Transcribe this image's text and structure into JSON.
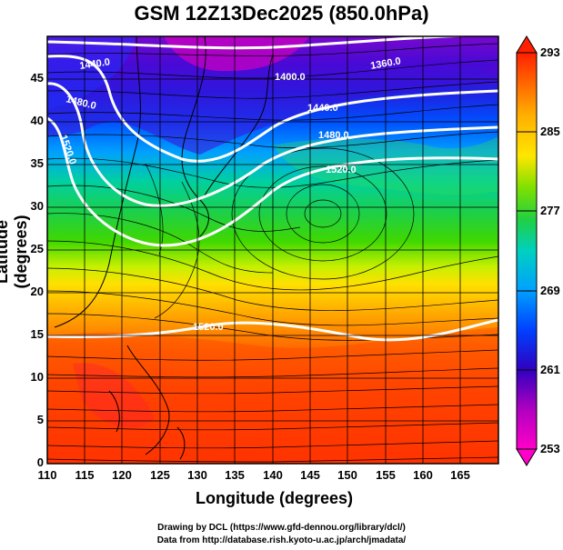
{
  "title": "GSM 12Z13Dec2025 (850.0hPa)",
  "x_axis": {
    "label": "Longitude (degrees)",
    "min": 110,
    "max": 170,
    "ticks": [
      "110",
      "115",
      "120",
      "125",
      "130",
      "135",
      "140",
      "145",
      "150",
      "155",
      "160",
      "165"
    ]
  },
  "y_axis": {
    "label": "Latitude  (degrees)",
    "min": 0,
    "max": 50,
    "ticks": [
      "0",
      "5",
      "10",
      "15",
      "20",
      "25",
      "30",
      "35",
      "40",
      "45"
    ]
  },
  "colorbar": {
    "labels": [
      "293",
      "285",
      "277",
      "269",
      "261",
      "253"
    ],
    "min": 253,
    "max": 293,
    "colors": [
      "#ff0000",
      "#ff6a00",
      "#ffb000",
      "#ffe600",
      "#a6e600",
      "#33cc00",
      "#00cc99",
      "#00b0ff",
      "#0060ff",
      "#0000cc",
      "#5000c0",
      "#b000c0",
      "#ff00c8"
    ]
  },
  "contour_labels": [
    "1440.0",
    "1400.0",
    "1360.0",
    "1480.0",
    "1440.0",
    "1520.0",
    "1480.0",
    "1520.0",
    "1520.0"
  ],
  "credits": {
    "line1": "Drawing by DCL (https://www.gfd-dennou.org/library/dcl/)",
    "line2": "Data from http://database.rish.kyoto-u.ac.jp/arch/jmadata/"
  },
  "map_data": {
    "field": "temperature (K)",
    "contour_field": "geopotential height (m)",
    "overlay": "streamlines"
  }
}
